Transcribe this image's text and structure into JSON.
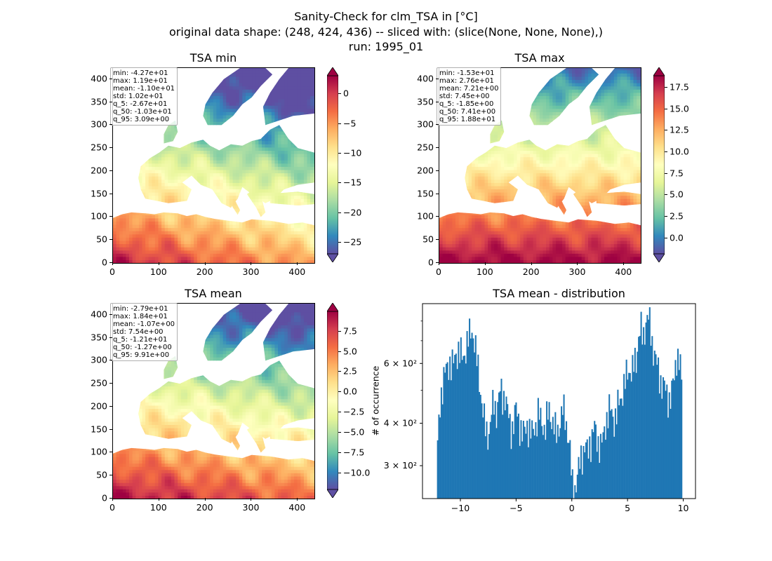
{
  "figure": {
    "title_line1": "Sanity-Check for clm_TSA in [°C]",
    "title_line2": "original data shape: (248, 424, 436) -- sliced with: (slice(None, None, None),)",
    "title_line3": "run: 1995_01"
  },
  "chart_data": [
    {
      "type": "heatmap",
      "title": "TSA min",
      "xlim": [
        0,
        436
      ],
      "ylim": [
        0,
        424
      ],
      "x_ticks": [
        "0",
        "100",
        "200",
        "300",
        "400"
      ],
      "y_ticks": [
        "0",
        "50",
        "100",
        "150",
        "200",
        "250",
        "300",
        "350",
        "400"
      ],
      "colormap": "Spectral_r",
      "colorbar_ticks": [
        "0",
        "−5",
        "−10",
        "−15",
        "−20",
        "−25"
      ],
      "colorbar_range": [
        -27,
        3
      ],
      "stats": [
        "min: -4.27e+01",
        "max: 1.19e+01",
        "mean: -1.10e+01",
        "std: 1.02e+01",
        "q_5: -2.67e+01",
        "q_50: -1.03e+01",
        "q_95: 3.09e+00"
      ]
    },
    {
      "type": "heatmap",
      "title": "TSA max",
      "xlim": [
        0,
        436
      ],
      "ylim": [
        0,
        424
      ],
      "x_ticks": [
        "0",
        "100",
        "200",
        "300",
        "400"
      ],
      "y_ticks": [
        "0",
        "50",
        "100",
        "150",
        "200",
        "250",
        "300",
        "350",
        "400"
      ],
      "colormap": "Spectral_r",
      "colorbar_ticks": [
        "17.5",
        "15.0",
        "12.5",
        "10.0",
        "7.5",
        "5.0",
        "2.5",
        "0.0"
      ],
      "colorbar_range": [
        -1.9,
        18.8
      ],
      "stats": [
        "min: -1.53e+01",
        "max: 2.76e+01",
        "mean: 7.21e+00",
        "std: 7.45e+00",
        "q_5: -1.85e+00",
        "q_50: 7.41e+00",
        "q_95: 1.88e+01"
      ]
    },
    {
      "type": "heatmap",
      "title": "TSA mean",
      "xlim": [
        0,
        436
      ],
      "ylim": [
        0,
        424
      ],
      "x_ticks": [
        "0",
        "100",
        "200",
        "300",
        "400"
      ],
      "y_ticks": [
        "0",
        "50",
        "100",
        "150",
        "200",
        "250",
        "300",
        "350",
        "400"
      ],
      "colormap": "Spectral_r",
      "colorbar_ticks": [
        "7.5",
        "5.0",
        "2.5",
        "0.0",
        "−2.5",
        "−5.0",
        "−7.5",
        "−10.0"
      ],
      "colorbar_range": [
        -12.1,
        9.9
      ],
      "stats": [
        "min: -2.79e+01",
        "max: 1.84e+01",
        "mean: -1.07e+00",
        "std: 7.54e+00",
        "q_5: -1.21e+01",
        "q_50: -1.27e+00",
        "q_95: 9.91e+00"
      ]
    },
    {
      "type": "bar",
      "title": "TSA mean - distribution",
      "ylabel": "# of occurrence",
      "yscale": "log",
      "xlim": [
        -13.4,
        11.1
      ],
      "ylim": [
        240,
        900
      ],
      "x_ticks": [
        "−10",
        "−5",
        "0",
        "5",
        "10"
      ],
      "x_tick_values": [
        -10,
        -5,
        0,
        5,
        10
      ],
      "y_major_ticks": [
        300,
        400,
        600
      ],
      "y_tick_labels": [
        "3 × 10²",
        "4 × 10²",
        "6 × 10²"
      ],
      "bar_color": "#1f77b4",
      "bin_start": -12.1,
      "bin_end": 9.9,
      "keypoints": [
        [
          -12.1,
          310
        ],
        [
          -11.95,
          390
        ],
        [
          -11.8,
          470
        ],
        [
          -11.6,
          520
        ],
        [
          -11.4,
          560
        ],
        [
          -11.2,
          580
        ],
        [
          -11.0,
          610
        ],
        [
          -10.8,
          590
        ],
        [
          -10.6,
          600
        ],
        [
          -10.4,
          640
        ],
        [
          -10.2,
          660
        ],
        [
          -10.0,
          640
        ],
        [
          -9.8,
          620
        ],
        [
          -9.6,
          650
        ],
        [
          -9.4,
          690
        ],
        [
          -9.2,
          720
        ],
        [
          -9.0,
          760
        ],
        [
          -8.8,
          720
        ],
        [
          -8.6,
          640
        ],
        [
          -8.4,
          570
        ],
        [
          -8.2,
          500
        ],
        [
          -8.0,
          440
        ],
        [
          -7.8,
          390
        ],
        [
          -7.6,
          370
        ],
        [
          -7.4,
          380
        ],
        [
          -7.2,
          430
        ],
        [
          -7.0,
          460
        ],
        [
          -6.8,
          430
        ],
        [
          -6.6,
          470
        ],
        [
          -6.4,
          500
        ],
        [
          -6.2,
          470
        ],
        [
          -6.0,
          490
        ],
        [
          -5.8,
          440
        ],
        [
          -5.6,
          400
        ],
        [
          -5.4,
          380
        ],
        [
          -5.2,
          410
        ],
        [
          -5.0,
          440
        ],
        [
          -4.8,
          410
        ],
        [
          -4.6,
          390
        ],
        [
          -4.4,
          370
        ],
        [
          -4.2,
          380
        ],
        [
          -4.0,
          400
        ],
        [
          -3.8,
          380
        ],
        [
          -3.6,
          370
        ],
        [
          -3.4,
          390
        ],
        [
          -3.2,
          400
        ],
        [
          -3.0,
          430
        ],
        [
          -2.8,
          410
        ],
        [
          -2.6,
          400
        ],
        [
          -2.4,
          380
        ],
        [
          -2.2,
          420
        ],
        [
          -2.0,
          440
        ],
        [
          -1.8,
          410
        ],
        [
          -1.6,
          390
        ],
        [
          -1.4,
          370
        ],
        [
          -1.2,
          390
        ],
        [
          -1.0,
          410
        ],
        [
          -0.8,
          440
        ],
        [
          -0.6,
          420
        ],
        [
          -0.4,
          380
        ],
        [
          -0.2,
          340
        ],
        [
          0.0,
          270
        ],
        [
          0.2,
          255
        ],
        [
          0.4,
          265
        ],
        [
          0.6,
          290
        ],
        [
          0.8,
          320
        ],
        [
          1.0,
          330
        ],
        [
          1.2,
          340
        ],
        [
          1.4,
          330
        ],
        [
          1.6,
          350
        ],
        [
          1.8,
          360
        ],
        [
          2.0,
          390
        ],
        [
          2.2,
          370
        ],
        [
          2.4,
          350
        ],
        [
          2.6,
          340
        ],
        [
          2.8,
          360
        ],
        [
          3.0,
          400
        ],
        [
          3.2,
          420
        ],
        [
          3.4,
          440
        ],
        [
          3.6,
          430
        ],
        [
          3.8,
          410
        ],
        [
          4.0,
          420
        ],
        [
          4.2,
          460
        ],
        [
          4.4,
          480
        ],
        [
          4.6,
          500
        ],
        [
          4.8,
          530
        ],
        [
          5.0,
          570
        ],
        [
          5.2,
          580
        ],
        [
          5.4,
          560
        ],
        [
          5.6,
          600
        ],
        [
          5.8,
          620
        ],
        [
          6.0,
          730
        ],
        [
          6.2,
          760
        ],
        [
          6.4,
          700
        ],
        [
          6.6,
          790
        ],
        [
          6.8,
          830
        ],
        [
          7.0,
          780
        ],
        [
          7.2,
          690
        ],
        [
          7.4,
          650
        ],
        [
          7.6,
          600
        ],
        [
          7.8,
          560
        ],
        [
          8.0,
          530
        ],
        [
          8.2,
          520
        ],
        [
          8.4,
          500
        ],
        [
          8.6,
          480
        ],
        [
          8.8,
          470
        ],
        [
          9.0,
          500
        ],
        [
          9.2,
          550
        ],
        [
          9.4,
          640
        ],
        [
          9.6,
          610
        ],
        [
          9.8,
          570
        ],
        [
          9.9,
          470
        ]
      ]
    }
  ]
}
